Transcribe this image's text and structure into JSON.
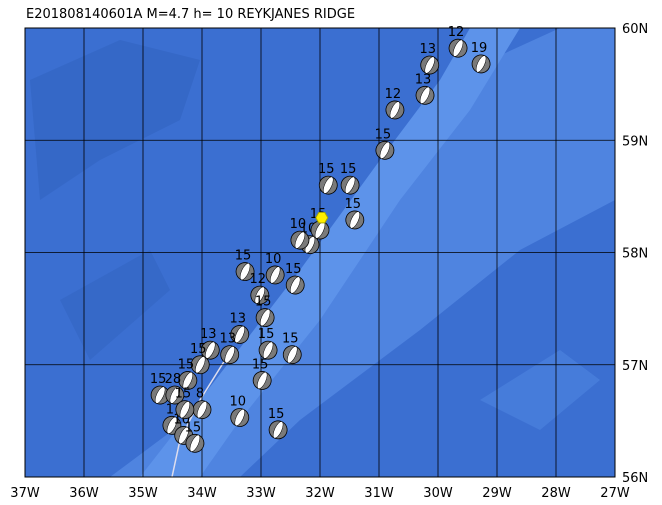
{
  "title": "E201808140601A M=4.7 h= 10 REYKJANES RIDGE",
  "lon_range": [
    -37,
    -27
  ],
  "lat_range": [
    56,
    60
  ],
  "lon_ticks": [
    {
      "value": -37,
      "label": "37W"
    },
    {
      "value": -36,
      "label": "36W"
    },
    {
      "value": -35,
      "label": "35W"
    },
    {
      "value": -34,
      "label": "34W"
    },
    {
      "value": -33,
      "label": "33W"
    },
    {
      "value": -32,
      "label": "32W"
    },
    {
      "value": -31,
      "label": "31W"
    },
    {
      "value": -30,
      "label": "30W"
    },
    {
      "value": -29,
      "label": "29W"
    },
    {
      "value": -28,
      "label": "28W"
    },
    {
      "value": -27,
      "label": "27W"
    }
  ],
  "lat_ticks": [
    {
      "value": 56,
      "label": "56N"
    },
    {
      "value": 57,
      "label": "57N"
    },
    {
      "value": 58,
      "label": "58N"
    },
    {
      "value": 59,
      "label": "59N"
    },
    {
      "value": 60,
      "label": "60N"
    }
  ],
  "epicenter": {
    "lon": -31.97,
    "lat": 58.31
  },
  "events": [
    {
      "lon": -29.66,
      "lat": 59.82,
      "label": "12"
    },
    {
      "lon": -29.27,
      "lat": 59.68,
      "label": "19"
    },
    {
      "lon": -30.14,
      "lat": 59.67,
      "label": "13"
    },
    {
      "lon": -30.22,
      "lat": 59.4,
      "label": "13"
    },
    {
      "lon": -30.73,
      "lat": 59.27,
      "label": "12"
    },
    {
      "lon": -30.9,
      "lat": 58.91,
      "label": "15"
    },
    {
      "lon": -31.49,
      "lat": 58.6,
      "label": "15"
    },
    {
      "lon": -31.86,
      "lat": 58.6,
      "label": "15"
    },
    {
      "lon": -31.41,
      "lat": 58.29,
      "label": "15"
    },
    {
      "lon": -32.17,
      "lat": 58.07,
      "label": "10"
    },
    {
      "lon": -32.34,
      "lat": 58.11,
      "label": "10"
    },
    {
      "lon": -32.0,
      "lat": 58.2,
      "label": "15"
    },
    {
      "lon": -33.27,
      "lat": 57.83,
      "label": "15"
    },
    {
      "lon": -32.76,
      "lat": 57.8,
      "label": "10"
    },
    {
      "lon": -32.42,
      "lat": 57.71,
      "label": "15"
    },
    {
      "lon": -33.02,
      "lat": 57.62,
      "label": "12"
    },
    {
      "lon": -32.93,
      "lat": 57.42,
      "label": "15"
    },
    {
      "lon": -33.36,
      "lat": 57.27,
      "label": "13"
    },
    {
      "lon": -33.86,
      "lat": 57.13,
      "label": "13"
    },
    {
      "lon": -32.88,
      "lat": 57.13,
      "label": "15"
    },
    {
      "lon": -32.47,
      "lat": 57.09,
      "label": "15"
    },
    {
      "lon": -33.53,
      "lat": 57.09,
      "label": "13"
    },
    {
      "lon": -34.03,
      "lat": 57.0,
      "label": "15"
    },
    {
      "lon": -32.98,
      "lat": 56.86,
      "label": "15"
    },
    {
      "lon": -34.24,
      "lat": 56.86,
      "label": "15"
    },
    {
      "lon": -34.71,
      "lat": 56.73,
      "label": "15"
    },
    {
      "lon": -34.46,
      "lat": 56.73,
      "label": "28"
    },
    {
      "lon": -34.0,
      "lat": 56.6,
      "label": "8"
    },
    {
      "lon": -33.36,
      "lat": 56.53,
      "label": "10"
    },
    {
      "lon": -32.71,
      "lat": 56.42,
      "label": "15"
    },
    {
      "lon": -34.51,
      "lat": 56.46,
      "label": "1"
    },
    {
      "lon": -34.31,
      "lat": 56.37,
      "label": "10"
    },
    {
      "lon": -34.12,
      "lat": 56.3,
      "label": "15"
    },
    {
      "lon": -34.29,
      "lat": 56.6,
      "label": "15"
    }
  ]
}
